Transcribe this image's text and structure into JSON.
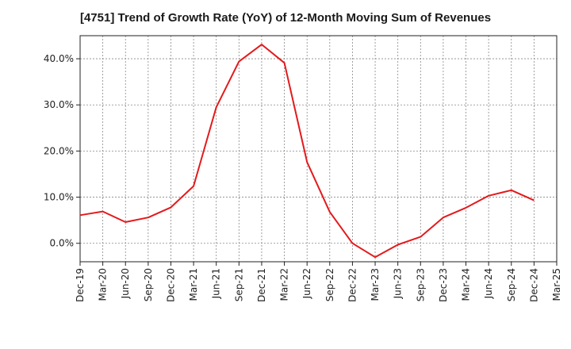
{
  "chart_data": {
    "type": "line",
    "title": "[4751]  Trend of Growth Rate (YoY) of 12-Month Moving Sum of Revenues",
    "xlabel": "",
    "ylabel": "",
    "x_ticks": [
      "Dec-19",
      "Mar-20",
      "Jun-20",
      "Sep-20",
      "Dec-20",
      "Mar-21",
      "Jun-21",
      "Sep-21",
      "Dec-21",
      "Mar-22",
      "Jun-22",
      "Sep-22",
      "Dec-22",
      "Mar-23",
      "Jun-23",
      "Sep-23",
      "Dec-23",
      "Mar-24",
      "Jun-24",
      "Sep-24",
      "Dec-24",
      "Mar-25"
    ],
    "y_ticks": [
      "0.0%",
      "10.0%",
      "20.0%",
      "30.0%",
      "40.0%"
    ],
    "y_tick_values": [
      0,
      10,
      20,
      30,
      40
    ],
    "ylim": [
      -4,
      45
    ],
    "grid": true,
    "series": [
      {
        "color": "#e31a1c",
        "x": [
          "Dec-19",
          "Mar-20",
          "Jun-20",
          "Sep-20",
          "Dec-20",
          "Mar-21",
          "Jun-21",
          "Sep-21",
          "Dec-21",
          "Mar-22",
          "Jun-22",
          "Sep-22",
          "Dec-22",
          "Mar-23",
          "Jun-23",
          "Sep-23",
          "Dec-23",
          "Mar-24",
          "Jun-24",
          "Sep-24",
          "Dec-24"
        ],
        "values": [
          6.1,
          6.9,
          4.6,
          5.6,
          7.8,
          12.4,
          29.5,
          39.4,
          43.1,
          39.1,
          17.6,
          6.8,
          0.0,
          -3.0,
          -0.3,
          1.4,
          5.6,
          7.7,
          10.3,
          11.5,
          9.3
        ]
      }
    ]
  }
}
